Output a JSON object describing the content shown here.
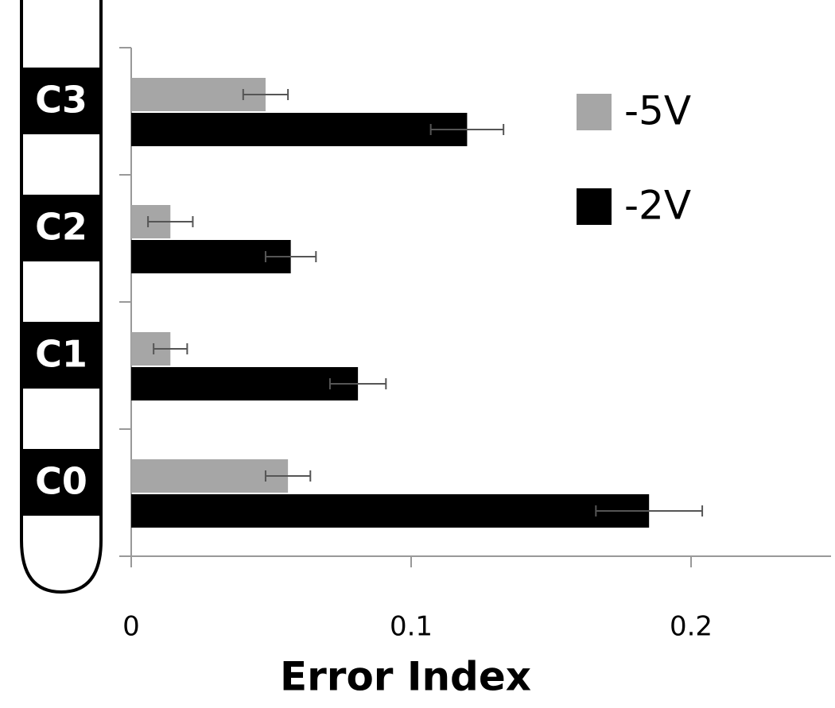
{
  "chart_data": {
    "type": "hbar",
    "xlabel": "Error Index",
    "categories": [
      "C0",
      "C1",
      "C2",
      "C3"
    ],
    "series": [
      {
        "name": "-5V",
        "color": "#a6a6a6",
        "values": [
          0.056,
          0.014,
          0.014,
          0.048
        ],
        "errors": [
          0.008,
          0.006,
          0.008,
          0.008
        ]
      },
      {
        "name": "-2V",
        "color": "#000000",
        "values": [
          0.185,
          0.081,
          0.057,
          0.12
        ],
        "errors": [
          0.019,
          0.01,
          0.009,
          0.013
        ]
      }
    ],
    "xlim": [
      0,
      0.25
    ],
    "xticks": [
      0,
      0.1,
      0.2
    ]
  }
}
